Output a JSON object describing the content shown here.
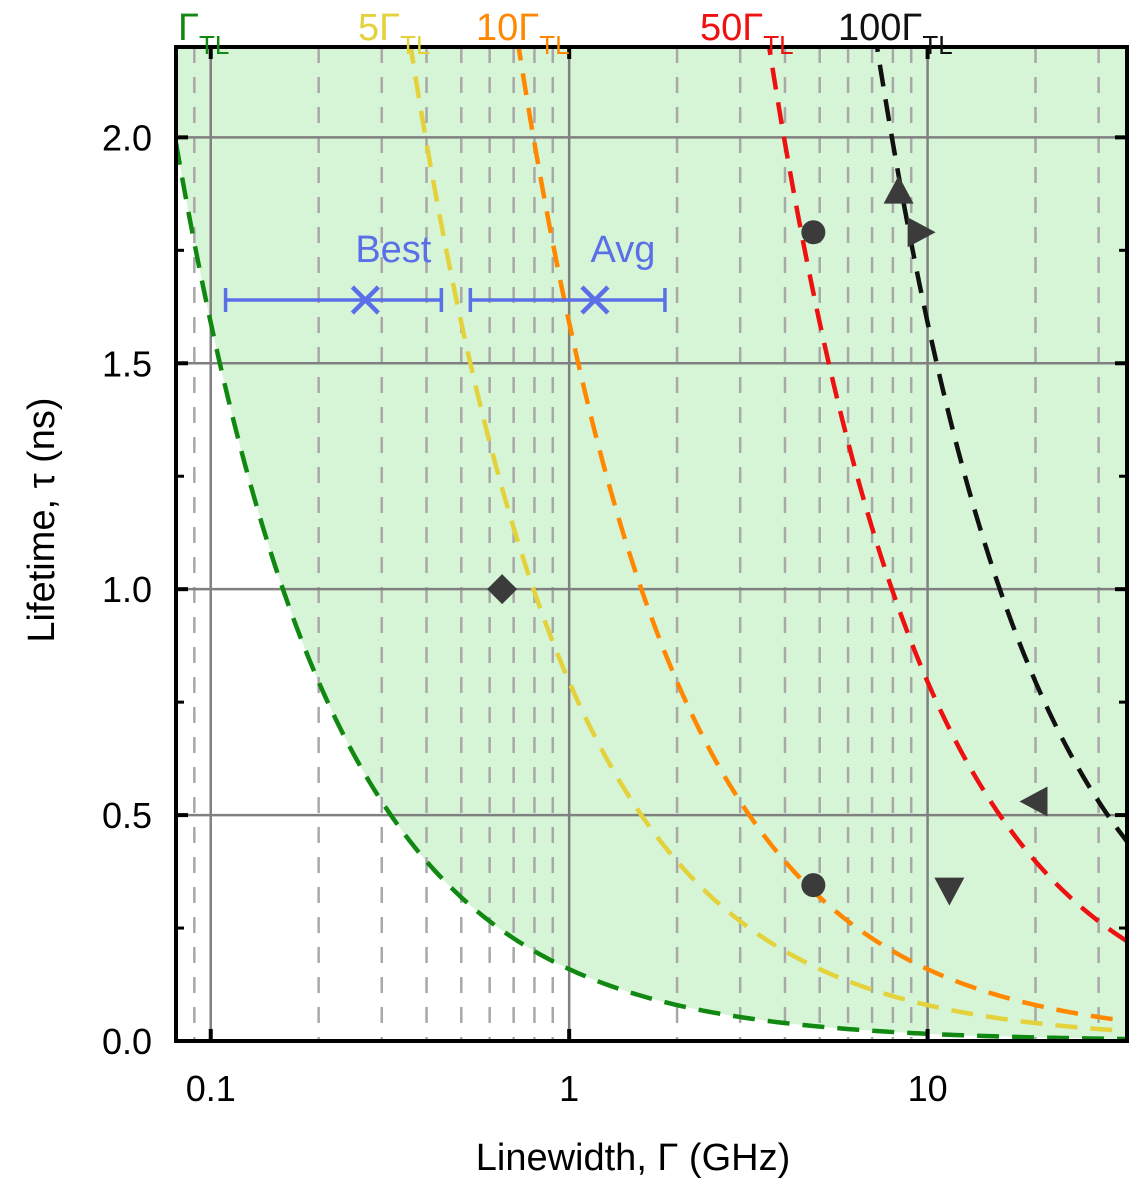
{
  "chart_data": {
    "type": "line",
    "xscale": "log",
    "xlim": [
      0.08,
      36
    ],
    "ylim": [
      0.0,
      2.2
    ],
    "xlabel": "Linewidth, Γ (GHz)",
    "ylabel": "Lifetime, τ (ns)",
    "xticks": [
      {
        "value": 0.1,
        "label": "0.1"
      },
      {
        "value": 1,
        "label": "1"
      },
      {
        "value": 10,
        "label": "10"
      }
    ],
    "yticks": [
      {
        "value": 0.0,
        "label": "0.0"
      },
      {
        "value": 0.5,
        "label": "0.5"
      },
      {
        "value": 1.0,
        "label": "1.0"
      },
      {
        "value": 1.5,
        "label": "1.5"
      },
      {
        "value": 2.0,
        "label": "2.0"
      }
    ],
    "grid": true,
    "series": [
      {
        "name": "Γ_TL",
        "base": "Γ",
        "sub": "TL",
        "multiplier": 1,
        "color": "#118811",
        "fill": "#d6f5d6"
      },
      {
        "name": "5Γ_TL",
        "base": "5Γ",
        "sub": "TL",
        "multiplier": 5,
        "color": "#e3d23c",
        "fill": "#fdfdd6"
      },
      {
        "name": "10Γ_TL",
        "base": "10Γ",
        "sub": "TL",
        "multiplier": 10,
        "color": "#ff8800",
        "fill": "#fde6d6"
      },
      {
        "name": "50Γ_TL",
        "base": "50Γ",
        "sub": "TL",
        "multiplier": 50,
        "color": "#ee1111",
        "fill": "#fcd6d6"
      },
      {
        "name": "100Γ_TL",
        "base": "100Γ",
        "sub": "TL",
        "multiplier": 100,
        "color": "#111111",
        "fill": "#d8d8d8"
      }
    ],
    "error_points": [
      {
        "label": "Best",
        "x": 0.27,
        "y": 1.64,
        "xmin": 0.11,
        "xmax": 0.44,
        "color": "#5a6fe8"
      },
      {
        "label": "Avg",
        "x": 1.18,
        "y": 1.64,
        "xmin": 0.53,
        "xmax": 1.85,
        "color": "#5a6fe8"
      }
    ],
    "markers": [
      {
        "shape": "diamond",
        "x": 0.65,
        "y": 1.0
      },
      {
        "shape": "circle",
        "x": 4.8,
        "y": 1.79
      },
      {
        "shape": "circle",
        "x": 4.8,
        "y": 0.345
      },
      {
        "shape": "triangle-up",
        "x": 8.3,
        "y": 1.88
      },
      {
        "shape": "triangle-right",
        "x": 9.5,
        "y": 1.79
      },
      {
        "shape": "triangle-left",
        "x": 20.0,
        "y": 0.53
      },
      {
        "shape": "triangle-down",
        "x": 11.5,
        "y": 0.335
      }
    ]
  }
}
